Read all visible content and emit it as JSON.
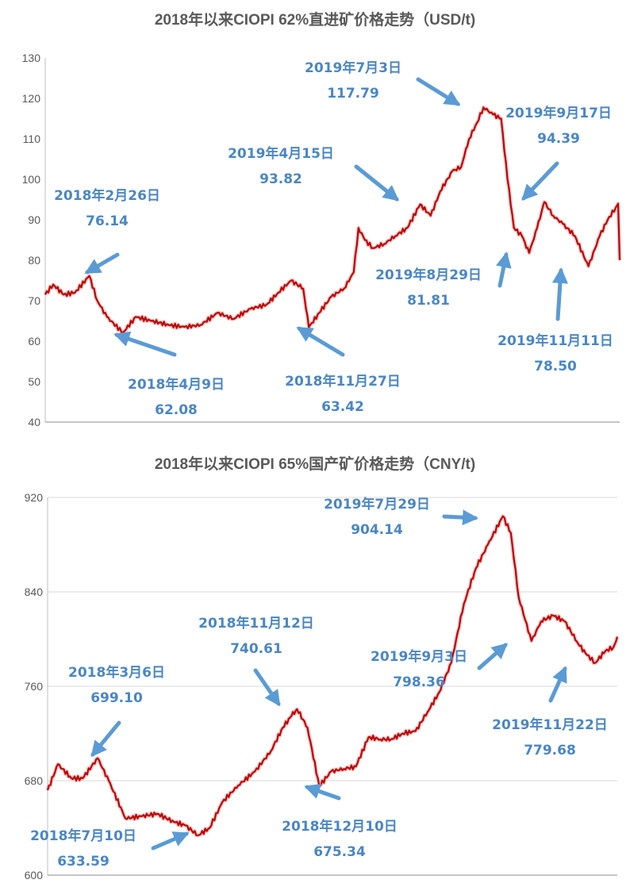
{
  "chart_data": [
    {
      "type": "line",
      "title": "2018年以来CIOPI 62%直进矿价格走势（USD/t)",
      "ylim": [
        40,
        130
      ],
      "yticks": [
        40,
        50,
        60,
        70,
        80,
        90,
        100,
        110,
        120,
        130
      ],
      "grid": false,
      "x_range": [
        "2018-01-02",
        "2019-12-20"
      ],
      "series": [
        {
          "x": [
            "2018-01-02",
            "2018-01-12",
            "2018-01-25",
            "2018-02-08",
            "2018-02-26",
            "2018-03-08",
            "2018-03-20",
            "2018-04-09",
            "2018-04-25",
            "2018-05-15",
            "2018-06-05",
            "2018-06-25",
            "2018-07-15",
            "2018-08-05",
            "2018-08-25",
            "2018-09-15",
            "2018-10-05",
            "2018-10-20",
            "2018-11-05",
            "2018-11-20",
            "2018-11-27",
            "2018-12-10",
            "2018-12-25",
            "2019-01-10",
            "2019-01-22",
            "2019-01-28",
            "2019-02-05",
            "2019-02-15",
            "2019-03-01",
            "2019-03-15",
            "2019-03-30",
            "2019-04-15",
            "2019-04-28",
            "2019-05-10",
            "2019-05-25",
            "2019-06-05",
            "2019-06-15",
            "2019-06-25",
            "2019-07-03",
            "2019-07-15",
            "2019-07-25",
            "2019-08-02",
            "2019-08-10",
            "2019-08-20",
            "2019-08-29",
            "2019-09-08",
            "2019-09-17",
            "2019-09-28",
            "2019-10-10",
            "2019-10-25",
            "2019-11-11",
            "2019-11-25",
            "2019-12-05",
            "2019-12-15",
            "2019-12-18",
            "2019-12-20"
          ],
          "values": [
            71.5,
            74.0,
            71.5,
            72.0,
            76.14,
            70.0,
            66.0,
            62.08,
            66.0,
            65.0,
            64.0,
            63.5,
            64.0,
            67.0,
            65.5,
            68.0,
            69.0,
            72.0,
            75.0,
            73.0,
            63.42,
            67.0,
            71.0,
            73.0,
            77.0,
            88.0,
            85.0,
            83.0,
            84.0,
            86.0,
            88.0,
            93.82,
            91.0,
            97.0,
            102.0,
            103.0,
            110.0,
            114.0,
            117.79,
            116.0,
            115.0,
            100.0,
            88.0,
            86.0,
            81.81,
            88.0,
            94.39,
            91.0,
            89.0,
            86.0,
            78.5,
            86.0,
            90.0,
            93.0,
            94.0,
            80.0
          ]
        }
      ],
      "annotations": [
        {
          "date": "2018年2月26日",
          "value": "76.14"
        },
        {
          "date": "2018年4月9日",
          "value": "62.08"
        },
        {
          "date": "2018年11月27日",
          "value": "63.42"
        },
        {
          "date": "2019年4月15日",
          "value": "93.82"
        },
        {
          "date": "2019年7月3日",
          "value": "117.79"
        },
        {
          "date": "2019年8月29日",
          "value": "81.81"
        },
        {
          "date": "2019年9月17日",
          "value": "94.39"
        },
        {
          "date": "2019年11月11日",
          "value": "78.50"
        }
      ]
    },
    {
      "type": "line",
      "title": "2018年以来CIOPI 65%国产矿价格走势（CNY/t)",
      "ylim": [
        600,
        920
      ],
      "yticks": [
        600,
        680,
        760,
        840,
        920
      ],
      "grid": true,
      "x_range": [
        "2018-01-02",
        "2019-12-20"
      ],
      "series": [
        {
          "x": [
            "2018-01-02",
            "2018-01-15",
            "2018-02-01",
            "2018-02-15",
            "2018-03-06",
            "2018-03-20",
            "2018-04-10",
            "2018-05-01",
            "2018-05-20",
            "2018-06-10",
            "2018-06-25",
            "2018-07-10",
            "2018-07-25",
            "2018-08-10",
            "2018-08-30",
            "2018-09-20",
            "2018-10-10",
            "2018-10-25",
            "2018-11-05",
            "2018-11-12",
            "2018-11-25",
            "2018-12-10",
            "2018-12-25",
            "2019-01-10",
            "2019-01-25",
            "2019-02-10",
            "2019-02-25",
            "2019-03-10",
            "2019-03-25",
            "2019-04-10",
            "2019-04-25",
            "2019-05-10",
            "2019-05-25",
            "2019-06-10",
            "2019-06-25",
            "2019-07-10",
            "2019-07-29",
            "2019-08-08",
            "2019-08-18",
            "2019-09-03",
            "2019-09-15",
            "2019-09-30",
            "2019-10-15",
            "2019-10-30",
            "2019-11-10",
            "2019-11-22",
            "2019-12-05",
            "2019-12-15",
            "2019-12-20"
          ],
          "values": [
            672,
            694,
            682,
            682,
            699.1,
            680,
            648,
            650,
            652,
            645,
            642,
            633.59,
            640,
            662,
            676,
            688,
            705,
            725,
            735,
            740.61,
            725,
            675.34,
            688,
            690,
            692,
            717,
            715,
            715,
            720,
            722,
            738,
            755,
            780,
            830,
            860,
            880,
            904.14,
            890,
            835,
            798.36,
            815,
            820,
            815,
            798,
            788,
            779.68,
            790,
            793,
            802
          ]
        }
      ],
      "annotations": [
        {
          "date": "2018年3月6日",
          "value": "699.10"
        },
        {
          "date": "2018年7月10日",
          "value": "633.59"
        },
        {
          "date": "2018年11月12日",
          "value": "740.61"
        },
        {
          "date": "2018年12月10日",
          "value": "675.34"
        },
        {
          "date": "2019年7月29日",
          "value": "904.14"
        },
        {
          "date": "2019年9月3日",
          "value": "798.36"
        },
        {
          "date": "2019年11月22日",
          "value": "779.68"
        }
      ]
    }
  ]
}
